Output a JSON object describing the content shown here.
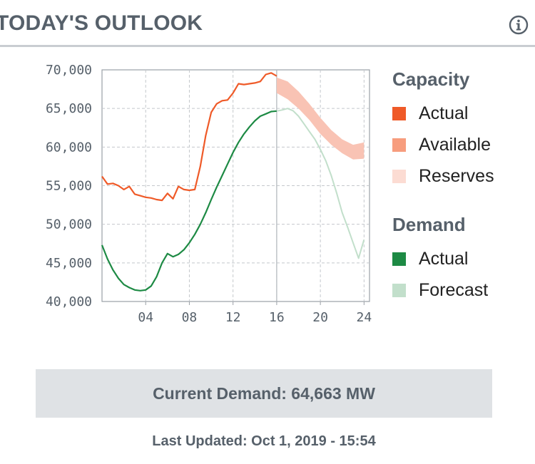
{
  "header": {
    "title": "TODAY'S OUTLOOK",
    "info_icon": "info-circle-icon"
  },
  "chart_data": {
    "type": "line",
    "x_ticks": [
      "04",
      "08",
      "12",
      "16",
      "20",
      "24"
    ],
    "y_ticks": [
      "40,000",
      "45,000",
      "50,000",
      "55,000",
      "60,000",
      "65,000",
      "70,000"
    ],
    "xlim": [
      0,
      24.5
    ],
    "ylim": [
      40000,
      70000
    ],
    "current_hour": 16,
    "series": [
      {
        "name": "Capacity Actual",
        "color": "#ef5a28",
        "x": [
          0,
          0.5,
          1,
          1.5,
          2,
          2.5,
          3,
          3.5,
          4,
          4.5,
          5,
          5.5,
          6,
          6.5,
          7,
          7.5,
          8,
          8.5,
          9,
          9.5,
          10,
          10.5,
          11,
          11.5,
          12,
          12.5,
          13,
          13.5,
          14,
          14.5,
          15,
          15.5,
          16
        ],
        "values": [
          56200,
          55200,
          55300,
          55000,
          54500,
          54900,
          53900,
          53700,
          53500,
          53400,
          53200,
          53100,
          54000,
          53300,
          54900,
          54500,
          54400,
          54500,
          57500,
          61500,
          64500,
          65600,
          66000,
          66100,
          67000,
          68200,
          68100,
          68200,
          68300,
          68500,
          69400,
          69600,
          69200
        ]
      },
      {
        "name": "Available (Reserves band)",
        "color": "#f9c3b4",
        "x": [
          16,
          17,
          18,
          19,
          20,
          21,
          22,
          23,
          24
        ],
        "upper": [
          69000,
          68500,
          67200,
          65600,
          63800,
          62200,
          61000,
          60300,
          60600
        ],
        "lower": [
          67000,
          66200,
          65000,
          63500,
          61700,
          60300,
          59200,
          58400,
          58500
        ]
      },
      {
        "name": "Demand Actual",
        "color": "#1d8a44",
        "x": [
          0,
          0.5,
          1,
          1.5,
          2,
          2.5,
          3,
          3.5,
          4,
          4.5,
          5,
          5.5,
          6,
          6.5,
          7,
          7.5,
          8,
          8.5,
          9,
          9.5,
          10,
          10.5,
          11,
          11.5,
          12,
          12.5,
          13,
          13.5,
          14,
          14.5,
          15,
          15.5,
          16
        ],
        "values": [
          47300,
          45500,
          44100,
          43000,
          42200,
          41800,
          41500,
          41400,
          41500,
          42000,
          43200,
          45000,
          46200,
          45800,
          46100,
          46700,
          47600,
          48700,
          50000,
          51500,
          53200,
          54800,
          56300,
          57800,
          59300,
          60600,
          61700,
          62600,
          63400,
          64000,
          64300,
          64600,
          64663
        ]
      },
      {
        "name": "Demand Forecast",
        "color": "#c2dfcb",
        "x": [
          16,
          16.5,
          17,
          17.5,
          18,
          18.5,
          19,
          19.5,
          20,
          20.5,
          21,
          21.5,
          22,
          22.5,
          23,
          23.5,
          24
        ],
        "values": [
          64663,
          64800,
          65000,
          64700,
          64000,
          63000,
          62000,
          61000,
          59700,
          58200,
          56300,
          54000,
          51500,
          49600,
          47600,
          45600,
          48000
        ]
      }
    ]
  },
  "legend": {
    "capacity_title": "Capacity",
    "capacity_items": [
      {
        "label": "Actual",
        "color": "#ef5a28"
      },
      {
        "label": "Available",
        "color": "#f79d7e"
      },
      {
        "label": "Reserves",
        "color": "#fcdcd3"
      }
    ],
    "demand_title": "Demand",
    "demand_items": [
      {
        "label": "Actual",
        "color": "#1d8a44"
      },
      {
        "label": "Forecast",
        "color": "#c2dfcb"
      }
    ]
  },
  "current_demand": "Current Demand: 64,663 MW",
  "last_updated": "Last Updated: Oct 1, 2019 - 15:54"
}
